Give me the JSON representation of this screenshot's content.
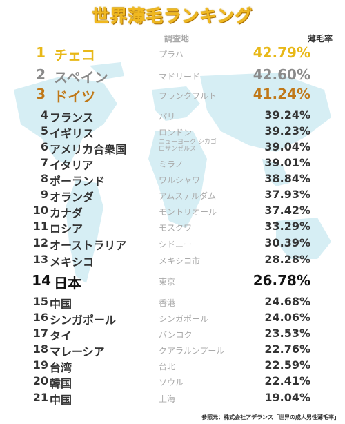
{
  "title": "世界薄毛ランキング",
  "headers": {
    "city": "調査地",
    "rate": "薄毛率"
  },
  "rows": [
    {
      "rank": "1",
      "country": "チェコ",
      "city": "プラハ",
      "rate": "42.79%"
    },
    {
      "rank": "2",
      "country": "スペイン",
      "city": "マドリード",
      "rate": "42.60%"
    },
    {
      "rank": "3",
      "country": "ドイツ",
      "city": "フランクフルト",
      "rate": "41.24%"
    },
    {
      "rank": "4",
      "country": "フランス",
      "city": "パリ",
      "rate": "39.24%"
    },
    {
      "rank": "5",
      "country": "イギリス",
      "city": "ロンドン",
      "rate": "39.23%"
    },
    {
      "rank": "6",
      "country": "アメリカ合衆国",
      "city_line1": "ニューヨーク シカゴ",
      "city_line2": "ロサンゼルス",
      "rate": "39.04%"
    },
    {
      "rank": "7",
      "country": "イタリア",
      "city": "ミラノ",
      "rate": "39.01%"
    },
    {
      "rank": "8",
      "country": "ポーランド",
      "city": "ワルシャワ",
      "rate": "38.84%"
    },
    {
      "rank": "9",
      "country": "オランダ",
      "city": "アムステルダム",
      "rate": "37.93%"
    },
    {
      "rank": "10",
      "country": "カナダ",
      "city": "モントリオール",
      "rate": "37.42%"
    },
    {
      "rank": "11",
      "country": "ロシア",
      "city": "モスクワ",
      "rate": "33.29%"
    },
    {
      "rank": "12",
      "country": "オーストラリア",
      "city": "シドニー",
      "rate": "30.39%"
    },
    {
      "rank": "13",
      "country": "メキシコ",
      "city": "メキシコ市",
      "rate": "28.28%"
    },
    {
      "rank": "14",
      "country": "日本",
      "city": "東京",
      "rate": "26.78%"
    },
    {
      "rank": "15",
      "country": "中国",
      "city": "香港",
      "rate": "24.68%"
    },
    {
      "rank": "16",
      "country": "シンガポール",
      "city": "シンガポール",
      "rate": "24.06%"
    },
    {
      "rank": "17",
      "country": "タイ",
      "city": "バンコク",
      "rate": "23.53%"
    },
    {
      "rank": "18",
      "country": "マレーシア",
      "city": "クアラルンプール",
      "rate": "22.76%"
    },
    {
      "rank": "19",
      "country": "台湾",
      "city": "台北",
      "rate": "22.59%"
    },
    {
      "rank": "20",
      "country": "韓国",
      "city": "ソウル",
      "rate": "22.41%"
    },
    {
      "rank": "21",
      "country": "中国",
      "city": "上海",
      "rate": "19.04%"
    }
  ],
  "colors": {
    "gold": "#e8b818",
    "silver": "#8a8a8a",
    "bronze": "#c07818",
    "map": "#d6eef4"
  },
  "footer": "参照元：株式会社アデランス「世界の成人男性薄毛率」"
}
